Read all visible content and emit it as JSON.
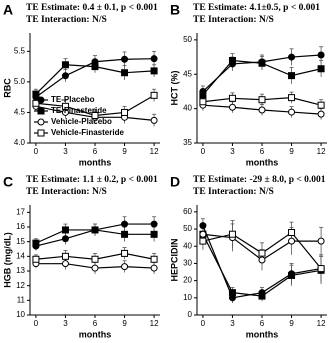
{
  "chart_data": [
    {
      "type": "line",
      "panel_label": "A",
      "title": "TE Estimate: 0.4 ± 0.1, p < 0.001",
      "subtitle": "TE Interaction: N/S",
      "x_label": "months",
      "y_label": "RBC",
      "x": [
        0,
        3,
        6,
        9,
        12
      ],
      "xlim": [
        -0.6,
        12.6
      ],
      "xticks": [
        0,
        3,
        6,
        9,
        12
      ],
      "ylim": [
        4.0,
        5.8
      ],
      "yticks": [
        {
          "value": 4.0,
          "label": "4.0"
        },
        4.5,
        {
          "value": 5.0,
          "label": "5.0"
        },
        5.5
      ],
      "legend": "lower left",
      "series": [
        {
          "name": "TE-Placebo",
          "color": "#000000",
          "marker": "circle",
          "filled": true,
          "values": [
            4.75,
            5.1,
            5.33,
            5.37,
            5.38
          ],
          "errors": [
            0.08,
            0.1,
            0.1,
            0.12,
            0.12
          ]
        },
        {
          "name": "TE-Finasteride",
          "color": "#000000",
          "marker": "square",
          "filled": true,
          "values": [
            4.8,
            5.28,
            5.25,
            5.15,
            5.18
          ],
          "errors": [
            0.08,
            0.1,
            0.1,
            0.12,
            0.1
          ]
        },
        {
          "name": "Vehicle-Placebo",
          "color": "#000000",
          "marker": "circle",
          "filled": false,
          "values": [
            4.6,
            4.5,
            4.42,
            4.42,
            4.37
          ],
          "errors": [
            0.08,
            0.1,
            0.1,
            0.1,
            0.1
          ]
        },
        {
          "name": "Vehicle-Finasteride",
          "color": "#000000",
          "marker": "square",
          "filled": false,
          "values": [
            4.65,
            4.6,
            4.45,
            4.5,
            4.78
          ],
          "errors": [
            0.08,
            0.1,
            0.1,
            0.1,
            0.1
          ]
        }
      ]
    },
    {
      "type": "line",
      "panel_label": "B",
      "title": "TE Estimate: 4.1±0.5, p < 0.001",
      "subtitle": "TE Interaction: N/S",
      "x_label": "months",
      "y_label": "HCT (%)",
      "x": [
        0,
        3,
        6,
        9,
        12
      ],
      "xlim": [
        -0.6,
        12.6
      ],
      "xticks": [
        0,
        3,
        6,
        9,
        12
      ],
      "ylim": [
        35,
        51
      ],
      "yticks": [
        35,
        40,
        45,
        50
      ],
      "series": [
        {
          "name": "TE-Placebo",
          "color": "#000000",
          "marker": "circle",
          "filled": true,
          "values": [
            42.5,
            46.5,
            46.8,
            47.5,
            47.8
          ],
          "errors": [
            0.8,
            1.0,
            1.0,
            1.2,
            1.2
          ]
        },
        {
          "name": "TE-Finasteride",
          "color": "#000000",
          "marker": "square",
          "filled": true,
          "values": [
            42,
            47,
            46.6,
            44.8,
            45.8
          ],
          "errors": [
            0.8,
            1.0,
            1.0,
            1.2,
            1.2
          ]
        },
        {
          "name": "Vehicle-Placebo",
          "color": "#000000",
          "marker": "circle",
          "filled": false,
          "values": [
            40.5,
            40.2,
            39.8,
            39.5,
            39.2
          ],
          "errors": [
            0.8,
            0.8,
            0.8,
            0.8,
            0.8
          ]
        },
        {
          "name": "Vehicle-Finasteride",
          "color": "#000000",
          "marker": "square",
          "filled": false,
          "values": [
            41,
            41.5,
            41.3,
            41.6,
            40.5
          ],
          "errors": [
            0.8,
            0.8,
            0.8,
            0.8,
            0.8
          ]
        }
      ]
    },
    {
      "type": "line",
      "panel_label": "C",
      "title": "TE Estimate: 1.1 ± 0.2, p < 0.001",
      "subtitle": "TE Interaction: N/S",
      "x_label": "months",
      "y_label": "HGB (mg/dL)",
      "x": [
        0,
        3,
        6,
        9,
        12
      ],
      "xlim": [
        -0.6,
        12.6
      ],
      "xticks": [
        0,
        3,
        6,
        9,
        12
      ],
      "ylim": [
        10,
        17.5
      ],
      "yticks": [
        10,
        11,
        12,
        13,
        14,
        15,
        16,
        17
      ],
      "series": [
        {
          "name": "TE-Placebo",
          "color": "#000000",
          "marker": "circle",
          "filled": true,
          "values": [
            14.7,
            15.2,
            15.8,
            16.2,
            16.2
          ],
          "errors": [
            0.3,
            0.4,
            0.4,
            0.5,
            0.5
          ]
        },
        {
          "name": "TE-Finasteride",
          "color": "#000000",
          "marker": "square",
          "filled": true,
          "values": [
            14.9,
            15.8,
            15.8,
            15.5,
            15.5
          ],
          "errors": [
            0.3,
            0.4,
            0.4,
            0.5,
            0.5
          ]
        },
        {
          "name": "Vehicle-Placebo",
          "color": "#000000",
          "marker": "circle",
          "filled": false,
          "values": [
            13.5,
            13.5,
            13.2,
            13.3,
            13.2
          ],
          "errors": [
            0.3,
            0.4,
            0.4,
            0.4,
            0.4
          ]
        },
        {
          "name": "Vehicle-Finasteride",
          "color": "#000000",
          "marker": "square",
          "filled": false,
          "values": [
            13.8,
            14.0,
            13.8,
            14.2,
            13.8
          ],
          "errors": [
            0.3,
            0.4,
            0.4,
            0.4,
            0.4
          ]
        }
      ]
    },
    {
      "type": "line",
      "panel_label": "D",
      "title": "TE Estimate: -29 ± 8.0, p < 0.001",
      "subtitle": "TE Interaction: N/S",
      "x_label": "months",
      "y_label": "HEPCIDIN",
      "x": [
        0,
        3,
        6,
        9,
        12
      ],
      "xlim": [
        -0.6,
        12.6
      ],
      "xticks": [
        0,
        3,
        6,
        9,
        12
      ],
      "ylim": [
        0,
        64
      ],
      "yticks": [
        0,
        10,
        20,
        30,
        40,
        50,
        60
      ],
      "series": [
        {
          "name": "TE-Placebo",
          "color": "#000000",
          "marker": "circle",
          "filled": true,
          "values": [
            52,
            10,
            13,
            24,
            27
          ],
          "errors": [
            4,
            3,
            3,
            6,
            8
          ]
        },
        {
          "name": "TE-Finasteride",
          "color": "#000000",
          "marker": "square",
          "filled": true,
          "values": [
            47,
            13,
            11,
            23,
            26
          ],
          "errors": [
            4,
            3,
            3,
            6,
            8
          ]
        },
        {
          "name": "Vehicle-Placebo",
          "color": "#000000",
          "marker": "circle",
          "filled": false,
          "values": [
            47,
            45,
            32,
            43,
            43
          ],
          "errors": [
            5,
            8,
            6,
            8,
            8
          ]
        },
        {
          "name": "Vehicle-Finasteride",
          "color": "#000000",
          "marker": "square",
          "filled": false,
          "values": [
            43,
            47,
            36,
            48,
            27
          ],
          "errors": [
            5,
            8,
            6,
            6,
            8
          ]
        }
      ]
    }
  ]
}
